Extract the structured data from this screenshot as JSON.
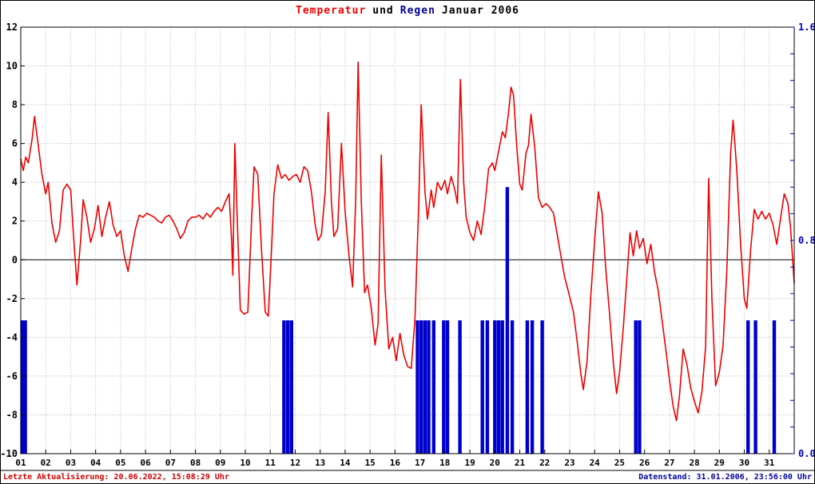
{
  "title": {
    "temperatur": "Temperatur",
    "und": "und",
    "regen": "Regen",
    "period": "Januar 2006"
  },
  "footer": {
    "left": "Letzte Aktualisierung: 20.06.2022, 15:08:29 Uhr",
    "right": "Datenstand: 31.01.2006, 23:56:00 Uhr"
  },
  "colors": {
    "temperature_line": "#ee0000",
    "rain_bar": "#0000cc",
    "right_axis_text": "#0000bb",
    "grid": "#b8b8b8",
    "axis": "#000000",
    "title_temperatur": "#ee0000",
    "title_regen": "#000099",
    "footer_left": "#cc0000",
    "footer_right": "#000099"
  },
  "chart_data": {
    "type": "line+bar",
    "title": "Temperatur und Regen Januar 2006",
    "grid": true,
    "x_axis": {
      "min": 1,
      "max": 32,
      "day_labels": [
        "01",
        "02",
        "03",
        "04",
        "05",
        "06",
        "07",
        "08",
        "09",
        "10",
        "11",
        "12",
        "13",
        "14",
        "15",
        "16",
        "17",
        "18",
        "19",
        "20",
        "21",
        "22",
        "23",
        "24",
        "25",
        "26",
        "27",
        "28",
        "29",
        "30",
        "31"
      ]
    },
    "left_axis": {
      "series": "Temperatur",
      "min": -10,
      "max": 12,
      "step": 2
    },
    "right_axis": {
      "series": "Regen",
      "min": 0,
      "max": 1.6,
      "ticks": [
        0,
        0.8,
        1.6
      ],
      "minor_tick": 0.1
    },
    "series": {
      "temperature": {
        "name": "Temperatur",
        "type": "line",
        "axis": "left",
        "points": [
          [
            1.0,
            5.2
          ],
          [
            1.1,
            4.6
          ],
          [
            1.2,
            5.3
          ],
          [
            1.3,
            5.0
          ],
          [
            1.45,
            6.2
          ],
          [
            1.55,
            7.4
          ],
          [
            1.7,
            5.9
          ],
          [
            1.85,
            4.4
          ],
          [
            2.0,
            3.4
          ],
          [
            2.1,
            4.0
          ],
          [
            2.25,
            1.9
          ],
          [
            2.4,
            0.9
          ],
          [
            2.55,
            1.5
          ],
          [
            2.7,
            3.6
          ],
          [
            2.85,
            3.9
          ],
          [
            3.0,
            3.6
          ],
          [
            3.1,
            1.5
          ],
          [
            3.25,
            -1.3
          ],
          [
            3.4,
            1.0
          ],
          [
            3.5,
            3.1
          ],
          [
            3.65,
            2.2
          ],
          [
            3.8,
            0.9
          ],
          [
            3.95,
            1.6
          ],
          [
            4.1,
            2.8
          ],
          [
            4.25,
            1.2
          ],
          [
            4.4,
            2.2
          ],
          [
            4.55,
            3.0
          ],
          [
            4.7,
            1.8
          ],
          [
            4.85,
            1.2
          ],
          [
            5.0,
            1.5
          ],
          [
            5.15,
            0.2
          ],
          [
            5.3,
            -0.6
          ],
          [
            5.45,
            0.6
          ],
          [
            5.6,
            1.6
          ],
          [
            5.75,
            2.3
          ],
          [
            5.9,
            2.2
          ],
          [
            6.05,
            2.4
          ],
          [
            6.2,
            2.3
          ],
          [
            6.35,
            2.2
          ],
          [
            6.5,
            2.0
          ],
          [
            6.65,
            1.9
          ],
          [
            6.8,
            2.2
          ],
          [
            6.95,
            2.3
          ],
          [
            7.1,
            2.0
          ],
          [
            7.25,
            1.6
          ],
          [
            7.4,
            1.1
          ],
          [
            7.55,
            1.4
          ],
          [
            7.7,
            2.0
          ],
          [
            7.85,
            2.2
          ],
          [
            8.0,
            2.2
          ],
          [
            8.15,
            2.3
          ],
          [
            8.3,
            2.1
          ],
          [
            8.45,
            2.4
          ],
          [
            8.6,
            2.2
          ],
          [
            8.75,
            2.5
          ],
          [
            8.9,
            2.7
          ],
          [
            9.05,
            2.5
          ],
          [
            9.2,
            3.0
          ],
          [
            9.35,
            3.4
          ],
          [
            9.45,
            1.0
          ],
          [
            9.5,
            -0.8
          ],
          [
            9.58,
            6.0
          ],
          [
            9.68,
            2.0
          ],
          [
            9.8,
            -2.6
          ],
          [
            9.95,
            -2.8
          ],
          [
            10.1,
            -2.7
          ],
          [
            10.25,
            2.0
          ],
          [
            10.35,
            4.8
          ],
          [
            10.5,
            4.4
          ],
          [
            10.65,
            0.5
          ],
          [
            10.8,
            -2.7
          ],
          [
            10.92,
            -2.9
          ],
          [
            11.05,
            0.5
          ],
          [
            11.15,
            3.4
          ],
          [
            11.3,
            4.9
          ],
          [
            11.45,
            4.2
          ],
          [
            11.6,
            4.4
          ],
          [
            11.75,
            4.1
          ],
          [
            11.9,
            4.3
          ],
          [
            12.05,
            4.4
          ],
          [
            12.2,
            4.0
          ],
          [
            12.35,
            4.8
          ],
          [
            12.5,
            4.6
          ],
          [
            12.65,
            3.5
          ],
          [
            12.8,
            1.8
          ],
          [
            12.92,
            1.0
          ],
          [
            13.05,
            1.3
          ],
          [
            13.2,
            3.5
          ],
          [
            13.32,
            7.6
          ],
          [
            13.45,
            3.0
          ],
          [
            13.55,
            1.2
          ],
          [
            13.7,
            1.6
          ],
          [
            13.85,
            6.0
          ],
          [
            14.0,
            2.5
          ],
          [
            14.15,
            0.3
          ],
          [
            14.3,
            -1.4
          ],
          [
            14.42,
            3.0
          ],
          [
            14.52,
            10.2
          ],
          [
            14.65,
            3.0
          ],
          [
            14.78,
            -1.7
          ],
          [
            14.9,
            -1.3
          ],
          [
            15.05,
            -2.5
          ],
          [
            15.2,
            -4.4
          ],
          [
            15.32,
            -3.3
          ],
          [
            15.45,
            5.4
          ],
          [
            15.6,
            -1.5
          ],
          [
            15.75,
            -4.6
          ],
          [
            15.9,
            -4.0
          ],
          [
            16.05,
            -5.2
          ],
          [
            16.2,
            -3.8
          ],
          [
            16.35,
            -4.9
          ],
          [
            16.5,
            -5.5
          ],
          [
            16.65,
            -5.6
          ],
          [
            16.8,
            -3.0
          ],
          [
            16.95,
            3.0
          ],
          [
            17.05,
            8.0
          ],
          [
            17.2,
            3.5
          ],
          [
            17.3,
            2.1
          ],
          [
            17.45,
            3.6
          ],
          [
            17.55,
            2.7
          ],
          [
            17.7,
            4.0
          ],
          [
            17.85,
            3.6
          ],
          [
            18.0,
            4.1
          ],
          [
            18.1,
            3.4
          ],
          [
            18.25,
            4.3
          ],
          [
            18.4,
            3.6
          ],
          [
            18.5,
            2.9
          ],
          [
            18.62,
            9.3
          ],
          [
            18.75,
            4.0
          ],
          [
            18.85,
            2.2
          ],
          [
            19.0,
            1.4
          ],
          [
            19.15,
            1.0
          ],
          [
            19.3,
            2.0
          ],
          [
            19.45,
            1.3
          ],
          [
            19.6,
            2.8
          ],
          [
            19.75,
            4.7
          ],
          [
            19.9,
            5.0
          ],
          [
            20.0,
            4.6
          ],
          [
            20.15,
            5.6
          ],
          [
            20.3,
            6.6
          ],
          [
            20.42,
            6.3
          ],
          [
            20.55,
            7.6
          ],
          [
            20.65,
            8.9
          ],
          [
            20.75,
            8.5
          ],
          [
            20.88,
            5.8
          ],
          [
            21.0,
            3.9
          ],
          [
            21.1,
            3.6
          ],
          [
            21.25,
            5.5
          ],
          [
            21.35,
            5.9
          ],
          [
            21.45,
            7.5
          ],
          [
            21.6,
            5.8
          ],
          [
            21.75,
            3.2
          ],
          [
            21.9,
            2.7
          ],
          [
            22.05,
            2.9
          ],
          [
            22.2,
            2.7
          ],
          [
            22.35,
            2.4
          ],
          [
            22.5,
            1.3
          ],
          [
            22.65,
            0.2
          ],
          [
            22.8,
            -0.9
          ],
          [
            23.0,
            -1.9
          ],
          [
            23.15,
            -2.7
          ],
          [
            23.3,
            -4.2
          ],
          [
            23.45,
            -5.9
          ],
          [
            23.55,
            -6.7
          ],
          [
            23.7,
            -5.2
          ],
          [
            23.85,
            -1.8
          ],
          [
            24.0,
            1.0
          ],
          [
            24.15,
            3.5
          ],
          [
            24.3,
            2.4
          ],
          [
            24.45,
            -0.5
          ],
          [
            24.6,
            -2.8
          ],
          [
            24.75,
            -5.3
          ],
          [
            24.88,
            -6.9
          ],
          [
            25.0,
            -5.8
          ],
          [
            25.15,
            -3.5
          ],
          [
            25.3,
            -0.8
          ],
          [
            25.42,
            1.4
          ],
          [
            25.55,
            0.2
          ],
          [
            25.68,
            1.5
          ],
          [
            25.8,
            0.6
          ],
          [
            25.95,
            1.1
          ],
          [
            26.1,
            -0.2
          ],
          [
            26.25,
            0.8
          ],
          [
            26.4,
            -0.6
          ],
          [
            26.55,
            -1.6
          ],
          [
            26.7,
            -3.1
          ],
          [
            26.85,
            -4.6
          ],
          [
            27.0,
            -6.2
          ],
          [
            27.15,
            -7.6
          ],
          [
            27.28,
            -8.3
          ],
          [
            27.4,
            -7.0
          ],
          [
            27.55,
            -4.6
          ],
          [
            27.7,
            -5.4
          ],
          [
            27.85,
            -6.6
          ],
          [
            28.0,
            -7.3
          ],
          [
            28.15,
            -7.9
          ],
          [
            28.3,
            -6.8
          ],
          [
            28.45,
            -4.5
          ],
          [
            28.57,
            4.2
          ],
          [
            28.7,
            -2.0
          ],
          [
            28.85,
            -6.5
          ],
          [
            29.0,
            -5.8
          ],
          [
            29.15,
            -4.4
          ],
          [
            29.3,
            -0.5
          ],
          [
            29.45,
            5.5
          ],
          [
            29.55,
            7.2
          ],
          [
            29.7,
            4.6
          ],
          [
            29.85,
            0.8
          ],
          [
            30.0,
            -2.0
          ],
          [
            30.1,
            -2.5
          ],
          [
            30.25,
            0.5
          ],
          [
            30.4,
            2.6
          ],
          [
            30.55,
            2.1
          ],
          [
            30.7,
            2.5
          ],
          [
            30.85,
            2.1
          ],
          [
            31.0,
            2.4
          ],
          [
            31.15,
            1.8
          ],
          [
            31.3,
            0.8
          ],
          [
            31.45,
            2.1
          ],
          [
            31.6,
            3.4
          ],
          [
            31.75,
            2.9
          ],
          [
            31.85,
            1.7
          ],
          [
            32.0,
            -1.2
          ]
        ]
      },
      "rain": {
        "name": "Regen",
        "type": "bar",
        "axis": "right",
        "points": [
          [
            1.05,
            0.5
          ],
          [
            1.18,
            0.5
          ],
          [
            11.55,
            0.5
          ],
          [
            11.7,
            0.5
          ],
          [
            11.85,
            0.5
          ],
          [
            16.9,
            0.5
          ],
          [
            17.05,
            0.5
          ],
          [
            17.2,
            0.5
          ],
          [
            17.35,
            0.5
          ],
          [
            17.55,
            0.5
          ],
          [
            17.95,
            0.5
          ],
          [
            18.1,
            0.5
          ],
          [
            18.6,
            0.5
          ],
          [
            19.5,
            0.5
          ],
          [
            19.7,
            0.5
          ],
          [
            20.0,
            0.5
          ],
          [
            20.15,
            0.5
          ],
          [
            20.3,
            0.5
          ],
          [
            20.5,
            1.0
          ],
          [
            20.7,
            0.5
          ],
          [
            21.3,
            0.5
          ],
          [
            21.5,
            0.5
          ],
          [
            21.9,
            0.5
          ],
          [
            25.65,
            0.5
          ],
          [
            25.8,
            0.5
          ],
          [
            30.15,
            0.5
          ],
          [
            30.45,
            0.5
          ],
          [
            31.2,
            0.5
          ]
        ]
      }
    }
  }
}
